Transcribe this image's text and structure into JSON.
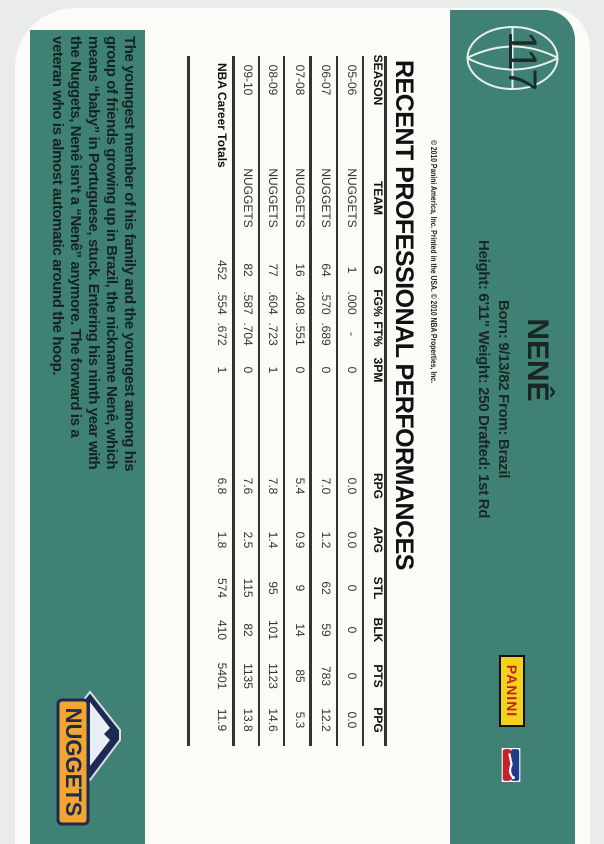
{
  "card": {
    "number": "117",
    "player_name": "NENÊ",
    "born_line": "Born: 9/13/82 From: Brazil",
    "height_line": "Height: 6'11\" Weight: 250 Drafted: 1st Rd",
    "copyright": "© 2010 Panini America, Inc. Printed in the USA. © 2010 NBA Properties, Inc.",
    "brand_logo": "PANINI",
    "league_logo": "NBA",
    "team_logo": "DENVER NUGGETS",
    "colors": {
      "band": "#3f8174",
      "paper": "#fbfcf8"
    }
  },
  "stats": {
    "title": "RECENT PROFESSIONAL PERFORMANCES",
    "columns": [
      "SEASON",
      "TEAM",
      "G",
      "FG%",
      "FT%",
      "3PM",
      "RPG",
      "APG",
      "STL",
      "BLK",
      "PTS",
      "PPG"
    ],
    "rows": [
      [
        "05-06",
        "NUGGETS",
        "1",
        ".000",
        "-",
        "0",
        "0.0",
        "0.0",
        "0",
        "0",
        "0",
        "0.0"
      ],
      [
        "06-07",
        "NUGGETS",
        "64",
        ".570",
        ".689",
        "0",
        "7.0",
        "1.2",
        "62",
        "59",
        "783",
        "12.2"
      ],
      [
        "07-08",
        "NUGGETS",
        "16",
        ".408",
        ".551",
        "0",
        "5.4",
        "0.9",
        "9",
        "14",
        "85",
        "5.3"
      ],
      [
        "08-09",
        "NUGGETS",
        "77",
        ".604",
        ".723",
        "1",
        "7.8",
        "1.4",
        "95",
        "101",
        "1123",
        "14.6"
      ],
      [
        "09-10",
        "NUGGETS",
        "82",
        ".587",
        ".704",
        "0",
        "7.6",
        "2.5",
        "115",
        "82",
        "1135",
        "13.8"
      ]
    ],
    "totals": {
      "label": "NBA Career Totals",
      "values": [
        "452",
        ".554",
        ".672",
        "1",
        "6.8",
        "1.8",
        "574",
        "410",
        "5401",
        "11.9"
      ]
    }
  },
  "bio": [
    "The youngest member of his family and the youngest among his",
    "group of friends growing up in Brazil, the nickname Nenê, which",
    "means “baby” in Portuguese, stuck. Entering his ninth year with",
    "the Nuggets, Nenê isn't a “Nenê” anymore. The forward is a",
    "veteran who is almost automatic around the hoop."
  ]
}
